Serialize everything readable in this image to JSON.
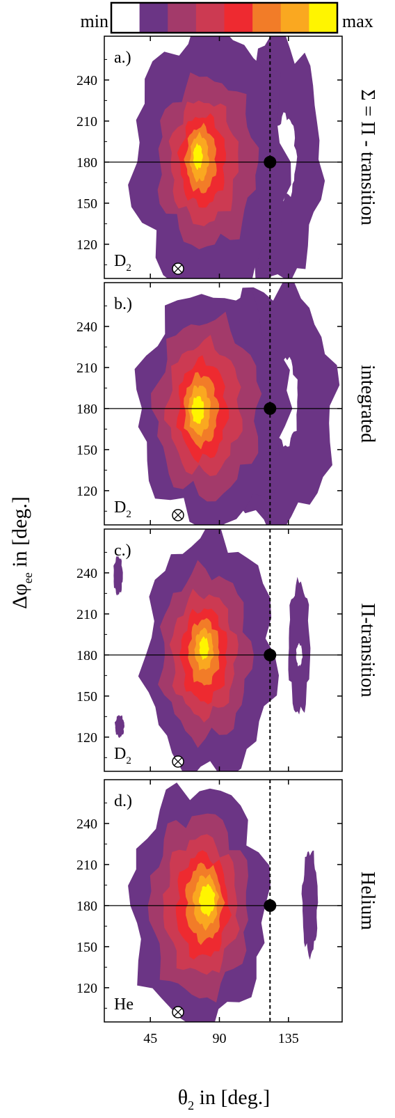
{
  "colorbar": {
    "min_label": "min",
    "max_label": "max",
    "colors": [
      "#ffffff",
      "#6b3585",
      "#a33a6a",
      "#cc3a52",
      "#ee2a30",
      "#f27c28",
      "#faa820",
      "#fff500"
    ]
  },
  "axes": {
    "ylabel": "Δφ",
    "ylabel_sub": "ee",
    "ylabel_rest": " in [deg.]",
    "xlabel": "θ",
    "xlabel_sub": "2",
    "xlabel_rest": " in [deg.]",
    "x_ticks": [
      45,
      90,
      135
    ],
    "y_ticks": [
      120,
      150,
      180,
      210,
      240
    ],
    "xlim": [
      15,
      170
    ],
    "ylim": [
      95,
      272
    ]
  },
  "chart_data": [
    {
      "type": "heatmap",
      "panel_label": "a.)",
      "side_label": "Σ = Π - transition",
      "target": "D",
      "target_sub": "2",
      "marker_point": [
        123,
        180
      ],
      "reference_lines": {
        "horizontal_y": 180,
        "vertical_x": 123
      },
      "blobs": [
        {
          "level": 1,
          "cx": 84,
          "cy": 180,
          "rx": 50,
          "ry": 98
        },
        {
          "level": 2,
          "cx": 82,
          "cy": 180,
          "rx": 32,
          "ry": 62
        },
        {
          "level": 3,
          "cx": 80,
          "cy": 180,
          "rx": 22,
          "ry": 45
        },
        {
          "level": 4,
          "cx": 79,
          "cy": 181,
          "rx": 15,
          "ry": 33
        },
        {
          "level": 5,
          "cx": 78,
          "cy": 182,
          "rx": 10,
          "ry": 24
        },
        {
          "level": 6,
          "cx": 77,
          "cy": 183,
          "rx": 6,
          "ry": 17
        },
        {
          "level": 7,
          "cx": 76,
          "cy": 184,
          "rx": 3,
          "ry": 9
        }
      ],
      "outer": [
        {
          "level": 1,
          "cx": 128,
          "cy": 182,
          "rx": 28,
          "ry": 90
        }
      ],
      "holes": [
        {
          "cx": 133,
          "cy": 184,
          "rx": 7,
          "ry": 30
        }
      ]
    },
    {
      "type": "heatmap",
      "panel_label": "b.)",
      "side_label": "integrated",
      "target": "D",
      "target_sub": "2",
      "marker_point": [
        123,
        180
      ],
      "reference_lines": {
        "horizontal_y": 180,
        "vertical_x": 123
      },
      "blobs": [
        {
          "level": 1,
          "cx": 86,
          "cy": 180,
          "rx": 49,
          "ry": 85
        },
        {
          "level": 2,
          "cx": 82,
          "cy": 180,
          "rx": 34,
          "ry": 65
        },
        {
          "level": 3,
          "cx": 80,
          "cy": 180,
          "rx": 24,
          "ry": 48
        },
        {
          "level": 4,
          "cx": 79,
          "cy": 179,
          "rx": 16,
          "ry": 36
        },
        {
          "level": 5,
          "cx": 78,
          "cy": 179,
          "rx": 11,
          "ry": 26
        },
        {
          "level": 6,
          "cx": 77,
          "cy": 179,
          "rx": 7,
          "ry": 18
        },
        {
          "level": 7,
          "cx": 76,
          "cy": 179,
          "rx": 4,
          "ry": 10
        }
      ],
      "outer": [
        {
          "level": 1,
          "cx": 125,
          "cy": 182,
          "rx": 40,
          "ry": 88
        }
      ],
      "holes": [
        {
          "cx": 133,
          "cy": 185,
          "rx": 8,
          "ry": 32
        }
      ]
    },
    {
      "type": "heatmap",
      "panel_label": "c.)",
      "side_label": "Π-transition",
      "target": "D",
      "target_sub": "2",
      "marker_point": [
        123,
        180
      ],
      "reference_lines": {
        "horizontal_y": 180,
        "vertical_x": 123
      },
      "blobs": [
        {
          "level": 1,
          "cx": 84,
          "cy": 180,
          "rx": 42,
          "ry": 88
        },
        {
          "level": 2,
          "cx": 81,
          "cy": 180,
          "rx": 29,
          "ry": 62
        },
        {
          "level": 3,
          "cx": 80,
          "cy": 180,
          "rx": 21,
          "ry": 45
        },
        {
          "level": 4,
          "cx": 80,
          "cy": 180,
          "rx": 15,
          "ry": 34
        },
        {
          "level": 5,
          "cx": 80,
          "cy": 182,
          "rx": 10,
          "ry": 24
        },
        {
          "level": 6,
          "cx": 80,
          "cy": 184,
          "rx": 6,
          "ry": 15
        },
        {
          "level": 7,
          "cx": 80,
          "cy": 185,
          "rx": 3,
          "ry": 8
        }
      ],
      "outer": [
        {
          "level": 1,
          "cx": 142,
          "cy": 185,
          "rx": 7,
          "ry": 48
        },
        {
          "level": 1,
          "cx": 24,
          "cy": 238,
          "rx": 3,
          "ry": 14
        },
        {
          "level": 1,
          "cx": 25,
          "cy": 128,
          "rx": 3,
          "ry": 8
        }
      ],
      "holes": [
        {
          "cx": 142,
          "cy": 180,
          "rx": 2,
          "ry": 8
        }
      ]
    },
    {
      "type": "heatmap",
      "panel_label": "d.)",
      "side_label": "Helium",
      "target": "He",
      "target_sub": "",
      "marker_point": [
        123,
        180
      ],
      "reference_lines": {
        "horizontal_y": 180,
        "vertical_x": 123
      },
      "blobs": [
        {
          "level": 1,
          "cx": 77,
          "cy": 180,
          "rx": 44,
          "ry": 87
        },
        {
          "level": 2,
          "cx": 77,
          "cy": 180,
          "rx": 32,
          "ry": 67
        },
        {
          "level": 3,
          "cx": 78,
          "cy": 180,
          "rx": 24,
          "ry": 50
        },
        {
          "level": 4,
          "cx": 79,
          "cy": 180,
          "rx": 17,
          "ry": 38
        },
        {
          "level": 5,
          "cx": 80,
          "cy": 182,
          "rx": 12,
          "ry": 28
        },
        {
          "level": 6,
          "cx": 81,
          "cy": 183,
          "rx": 8,
          "ry": 19
        },
        {
          "level": 7,
          "cx": 82,
          "cy": 184,
          "rx": 5,
          "ry": 11
        }
      ],
      "outer": [
        {
          "level": 1,
          "cx": 149,
          "cy": 182,
          "rx": 5,
          "ry": 38
        }
      ],
      "holes": []
    }
  ]
}
